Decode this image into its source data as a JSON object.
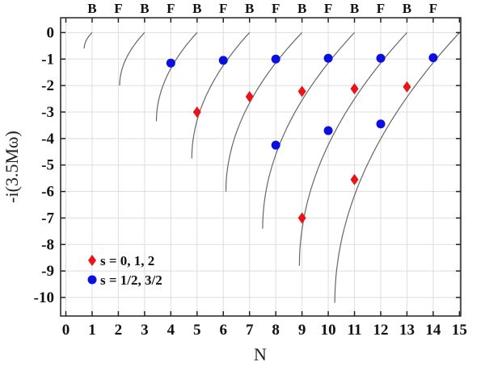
{
  "chart_data": {
    "type": "scatter",
    "xlabel": "N",
    "ylabel": "-i(3.5Mω)",
    "xlim": [
      -0.2,
      15.05
    ],
    "ylim": [
      -10.7,
      0.56
    ],
    "grid": true,
    "x_ticks": [
      0,
      1,
      2,
      3,
      4,
      5,
      6,
      7,
      8,
      9,
      10,
      11,
      12,
      13,
      14,
      15
    ],
    "y_ticks": [
      0,
      -1,
      -2,
      -3,
      -4,
      -5,
      -6,
      -7,
      -8,
      -9,
      -10
    ],
    "top_labels": [
      {
        "x": 1,
        "text": "B"
      },
      {
        "x": 2,
        "text": "F"
      },
      {
        "x": 3,
        "text": "B"
      },
      {
        "x": 4,
        "text": "F"
      },
      {
        "x": 5,
        "text": "B"
      },
      {
        "x": 6,
        "text": "F"
      },
      {
        "x": 7,
        "text": "B"
      },
      {
        "x": 8,
        "text": "F"
      },
      {
        "x": 9,
        "text": "B"
      },
      {
        "x": 10,
        "text": "F"
      },
      {
        "x": 11,
        "text": "B"
      },
      {
        "x": 12,
        "text": "F"
      },
      {
        "x": 13,
        "text": "B"
      },
      {
        "x": 14,
        "text": "F"
      }
    ],
    "curves": [
      {
        "x_end": 1,
        "x_bottom": 0.7,
        "y_bottom": -0.6
      },
      {
        "x_end": 3,
        "x_bottom": 2.05,
        "y_bottom": -2.0
      },
      {
        "x_end": 5,
        "x_bottom": 3.45,
        "y_bottom": -3.35
      },
      {
        "x_end": 7,
        "x_bottom": 4.8,
        "y_bottom": -4.75
      },
      {
        "x_end": 9,
        "x_bottom": 6.1,
        "y_bottom": -6.0
      },
      {
        "x_end": 11,
        "x_bottom": 7.5,
        "y_bottom": -7.4
      },
      {
        "x_end": 13,
        "x_bottom": 8.9,
        "y_bottom": -8.8
      },
      {
        "x_end": 15,
        "x_bottom": 10.25,
        "y_bottom": -10.2
      }
    ],
    "series": [
      {
        "name": "s = 0, 1, 2",
        "marker": "diamond",
        "color": "#e8141a",
        "points": [
          [
            5,
            -3.0
          ],
          [
            7,
            -2.42
          ],
          [
            9,
            -2.22
          ],
          [
            11,
            -2.12
          ],
          [
            13,
            -2.05
          ],
          [
            9,
            -7.0
          ],
          [
            11,
            -5.55
          ]
        ]
      },
      {
        "name": "s = 1/2, 3/2",
        "marker": "circle",
        "color": "#0a10e0",
        "points": [
          [
            4,
            -1.15
          ],
          [
            6,
            -1.05
          ],
          [
            8,
            -1.0
          ],
          [
            10,
            -0.97
          ],
          [
            12,
            -0.97
          ],
          [
            14,
            -0.95
          ],
          [
            8,
            -4.25
          ],
          [
            10,
            -3.7
          ],
          [
            12,
            -3.45
          ]
        ]
      }
    ],
    "legend_position": "bottom-left"
  }
}
